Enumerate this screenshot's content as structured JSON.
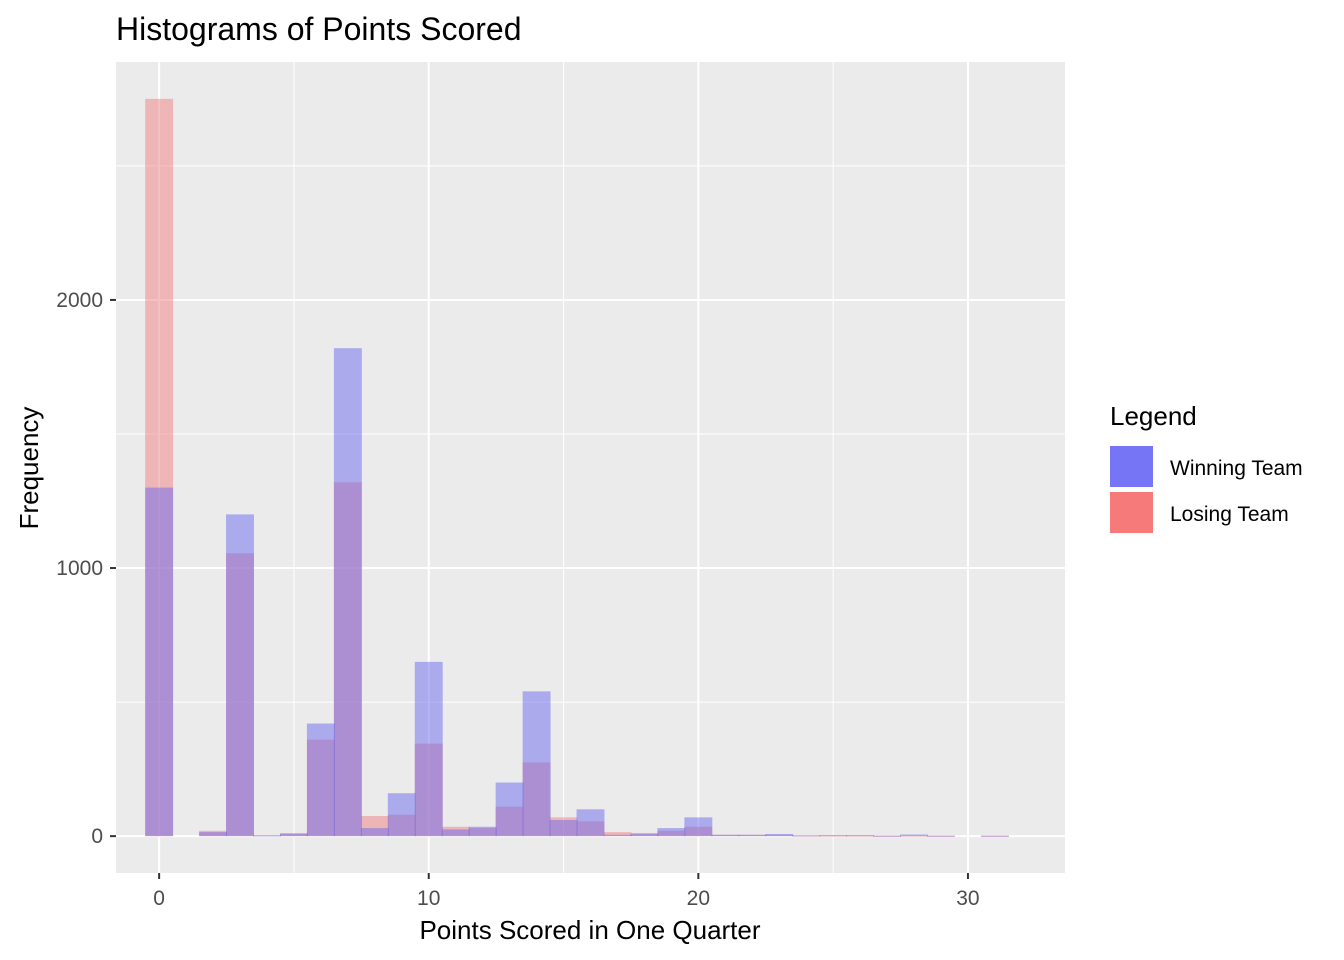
{
  "chart_data": {
    "type": "bar",
    "title": "Histograms of Points Scored",
    "xlabel": "Points Scored in One Quarter",
    "ylabel": "Frequency",
    "bin_width": 1.0357,
    "x": [
      0,
      2,
      3,
      4,
      5,
      6,
      7,
      8,
      9,
      10,
      11,
      12,
      13,
      14,
      15,
      16,
      17,
      18,
      19,
      20,
      21,
      22,
      23,
      24,
      25,
      26,
      27,
      28,
      29,
      30,
      31
    ],
    "series": [
      {
        "name": "Winning Team",
        "color": "#6a6af0",
        "values": [
          1300,
          15,
          1200,
          3,
          10,
          420,
          1820,
          30,
          160,
          650,
          25,
          35,
          200,
          540,
          60,
          100,
          5,
          10,
          30,
          70,
          5,
          5,
          8,
          3,
          4,
          4,
          2,
          6,
          2,
          0,
          2
        ]
      },
      {
        "name": "Losing Team",
        "color": "#f08080",
        "values": [
          2750,
          20,
          1055,
          3,
          10,
          360,
          1320,
          75,
          80,
          345,
          35,
          30,
          110,
          275,
          70,
          55,
          15,
          10,
          20,
          35,
          5,
          5,
          5,
          2,
          2,
          2,
          1,
          2,
          1,
          0,
          1
        ]
      }
    ],
    "xlim": [
      -1.6,
      33.6
    ],
    "ylim": [
      -137.5,
      2887.5
    ],
    "xticks": [
      0,
      10,
      20,
      30
    ],
    "xminor": [
      5,
      15,
      25
    ],
    "yticks": [
      0,
      1000,
      2000
    ],
    "yminor": [
      500,
      1500,
      2500
    ],
    "grid": true,
    "legend": {
      "title": "Legend",
      "position": "right",
      "entries": [
        {
          "label": "Winning Team",
          "color": "#7575f5"
        },
        {
          "label": "Losing Team",
          "color": "#f77a7a"
        }
      ]
    },
    "panel_background": "#ebebeb"
  }
}
